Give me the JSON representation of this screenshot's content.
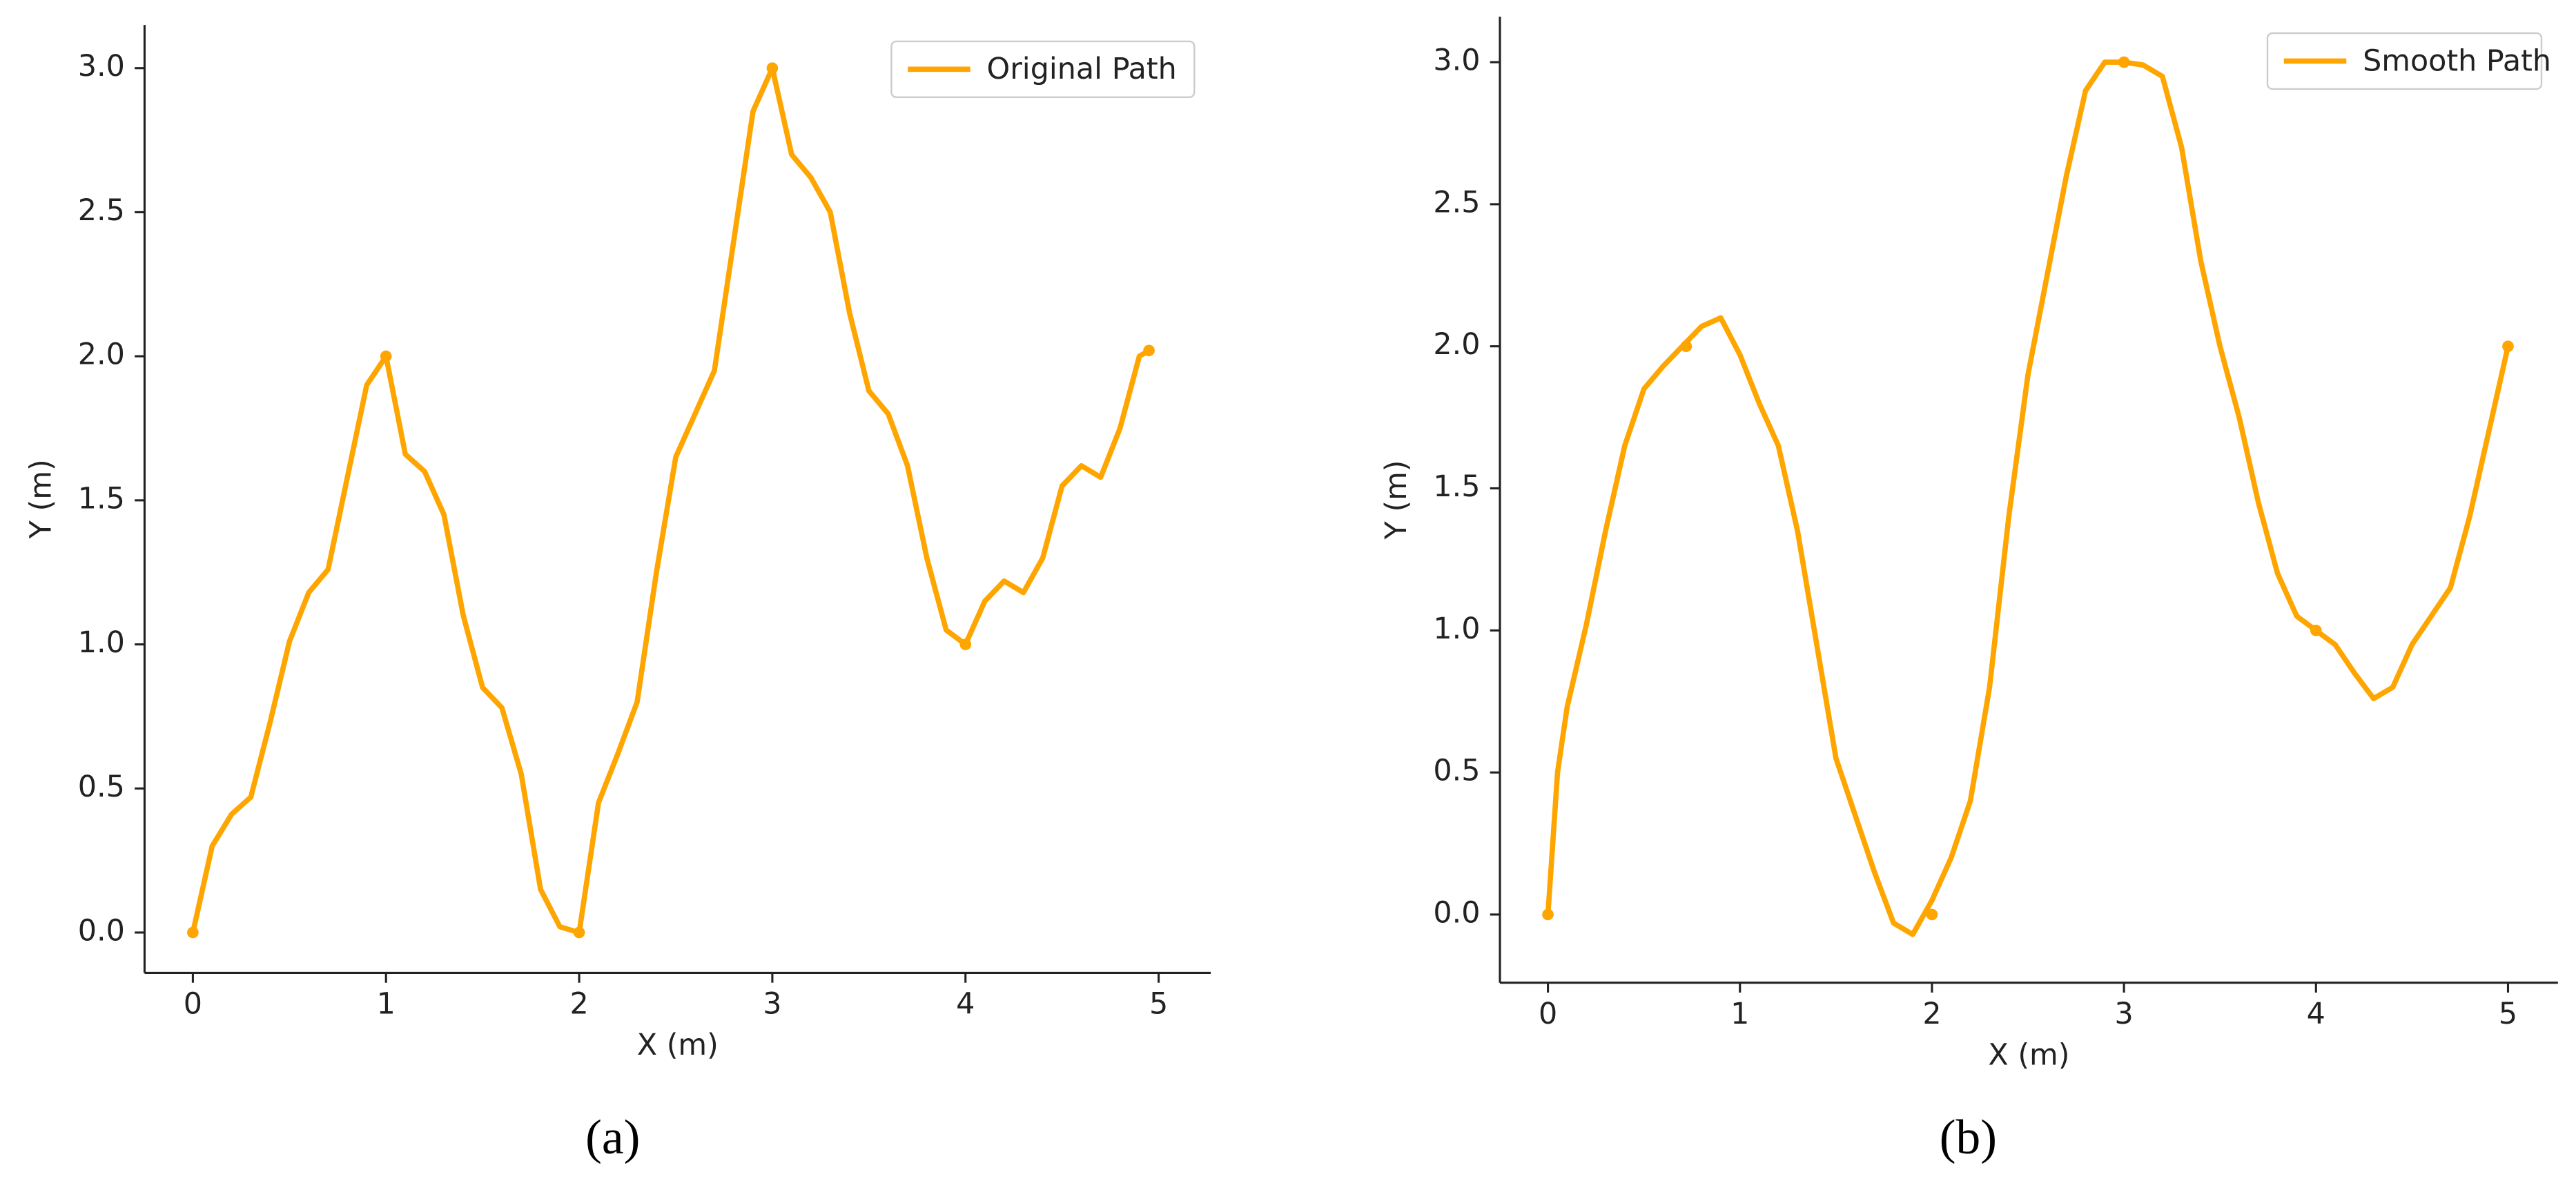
{
  "chart_data": [
    {
      "type": "line",
      "caption": "(a)",
      "xlabel": "X (m)",
      "ylabel": "Y (m)",
      "legend": "upper right",
      "x": [
        0,
        0.1,
        0.2,
        0.3,
        0.4,
        0.5,
        0.6,
        0.7,
        0.8,
        0.9,
        1.0,
        1.1,
        1.2,
        1.3,
        1.4,
        1.5,
        1.6,
        1.7,
        1.8,
        1.9,
        2.0,
        2.1,
        2.2,
        2.3,
        2.4,
        2.5,
        2.6,
        2.7,
        2.8,
        2.9,
        3.0,
        3.1,
        3.2,
        3.3,
        3.4,
        3.5,
        3.6,
        3.7,
        3.8,
        3.9,
        4.0,
        4.1,
        4.2,
        4.3,
        4.4,
        4.5,
        4.6,
        4.7,
        4.8,
        4.9,
        4.95
      ],
      "series": [
        {
          "name": "Original Path",
          "color": "#ffa500",
          "values": [
            0,
            0.3,
            0.41,
            0.47,
            0.73,
            1.01,
            1.18,
            1.26,
            1.58,
            1.9,
            2.0,
            1.66,
            1.6,
            1.45,
            1.1,
            0.85,
            0.78,
            0.55,
            0.15,
            0.02,
            0,
            0.45,
            0.62,
            0.8,
            1.25,
            1.65,
            1.8,
            1.95,
            2.4,
            2.85,
            3.0,
            2.7,
            2.62,
            2.5,
            2.15,
            1.88,
            1.8,
            1.62,
            1.3,
            1.05,
            1.0,
            1.15,
            1.22,
            1.18,
            1.3,
            1.55,
            1.62,
            1.58,
            1.75,
            2.0,
            2.02
          ]
        }
      ],
      "points": {
        "x": [
          0,
          1,
          2,
          3,
          4,
          4.95
        ],
        "y": [
          0,
          2.0,
          0,
          3.0,
          1.0,
          2.02
        ]
      },
      "xlim": [
        -0.25,
        5.27
      ],
      "ylim": [
        -0.14,
        3.15
      ],
      "xticks": [
        0,
        1,
        2,
        3,
        4,
        5
      ],
      "yticks": [
        {
          "value": 0,
          "label": "0.0"
        },
        0.5,
        {
          "value": 1,
          "label": "1.0"
        },
        1.5,
        {
          "value": 2,
          "label": "2.0"
        },
        2.5,
        {
          "value": 3,
          "label": "3.0"
        }
      ]
    },
    {
      "type": "line",
      "caption": "(b)",
      "xlabel": "X (m)",
      "ylabel": "Y (m)",
      "legend": "upper right",
      "x": [
        0,
        0.05,
        0.1,
        0.2,
        0.3,
        0.4,
        0.5,
        0.6,
        0.7,
        0.8,
        0.9,
        1.0,
        1.1,
        1.2,
        1.3,
        1.4,
        1.5,
        1.6,
        1.7,
        1.8,
        1.9,
        2.0,
        2.1,
        2.2,
        2.3,
        2.4,
        2.5,
        2.6,
        2.7,
        2.8,
        2.9,
        3.0,
        3.1,
        3.2,
        3.3,
        3.4,
        3.5,
        3.6,
        3.7,
        3.8,
        3.9,
        4.0,
        4.1,
        4.2,
        4.3,
        4.4,
        4.5,
        4.6,
        4.7,
        4.8,
        4.9,
        5.0
      ],
      "series": [
        {
          "name": "Smooth Path",
          "color": "#ffa500",
          "values": [
            0,
            0.5,
            0.73,
            1.02,
            1.35,
            1.65,
            1.85,
            1.93,
            2.0,
            2.07,
            2.1,
            1.97,
            1.8,
            1.65,
            1.35,
            0.95,
            0.55,
            0.35,
            0.15,
            -0.03,
            -0.07,
            0.05,
            0.2,
            0.4,
            0.8,
            1.4,
            1.9,
            2.25,
            2.6,
            2.9,
            3.0,
            3.0,
            2.99,
            2.95,
            2.7,
            2.3,
            2.0,
            1.75,
            1.45,
            1.2,
            1.05,
            1.0,
            0.95,
            0.85,
            0.76,
            0.8,
            0.95,
            1.05,
            1.15,
            1.4,
            1.7,
            2.0
          ]
        }
      ],
      "points": {
        "x": [
          0,
          0.72,
          2,
          3,
          4,
          5
        ],
        "y": [
          0,
          2.0,
          0,
          3.0,
          1.0,
          2.0
        ]
      },
      "xlim": [
        -0.25,
        5.26
      ],
      "ylim": [
        -0.24,
        3.16
      ],
      "xticks": [
        0,
        1,
        2,
        3,
        4,
        5
      ],
      "yticks": [
        {
          "value": 0,
          "label": "0.0"
        },
        0.5,
        {
          "value": 1,
          "label": "1.0"
        },
        1.5,
        {
          "value": 2,
          "label": "2.0"
        },
        2.5,
        {
          "value": 3,
          "label": "3.0"
        }
      ]
    }
  ]
}
